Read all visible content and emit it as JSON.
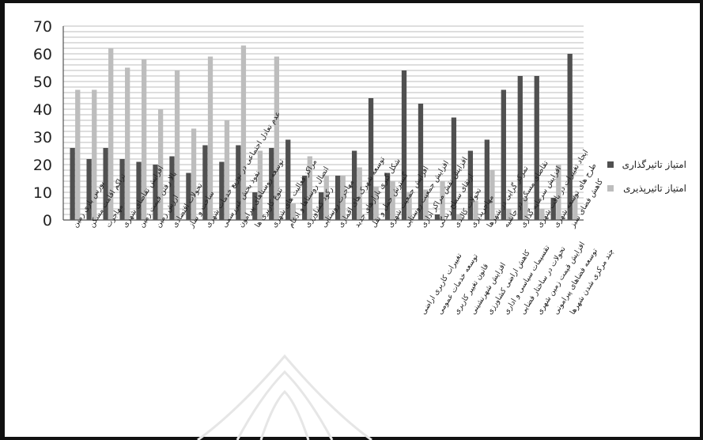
{
  "chart_data": {
    "type": "bar",
    "title": "",
    "xlabel": "",
    "ylabel": "",
    "ylim": [
      0,
      70
    ],
    "yticks": [
      0,
      10,
      20,
      30,
      40,
      50,
      60,
      70
    ],
    "grid": true,
    "legend_position": "right",
    "categories": [
      "بورس بازی زمین",
      "تراکم اقامت مسکن",
      "مهاجرت",
      "افزایش تقاضای شهری",
      "بالا رفتن قیمت زمین",
      "ارزش زمین",
      "تحولات اقتصادی",
      "ساخت و ساز",
      "عدم تعادل اجتماعی در توزیع خدمات شهری",
      "نفوذ بخش غیررسمی",
      "توسعه روستاهای پیرامون",
      "تنوع کاربری ها",
      "مراکز فعالیت های شهری",
      "اتصال روستاها و ادغام",
      "رکود کشاورزی",
      "مهاجرت روستایی",
      "توسعه شهرک های اقماری",
      "شکل گیری بازارهای جدید",
      "گسترش حمل و نقل",
      "افزایش جمعیت شهری",
      "افزایش جمعیت روستایی",
      "افزایش نقش مراکز اداری",
      "ارتقای سطح زندگی",
      "تحولات کالبدی",
      "مهاجرپذیری",
      "تمرکز گرایی در شهرها",
      "تقاضای مسکن در حاشیه",
      "افزایش سرمایه گذاری",
      "ایجاد تغییرات در بافت شهری",
      "طرح های توسعه شهری",
      "کاهش فضای سبز",
      "تغییرات کاربری اراضی",
      "توسعه خدمات عمومی",
      "قانون تغییر کاربری",
      "افزایش شهرنشینی",
      "کاهش اراضی کشاورزی",
      "تقسیمات سیاسی و اداری",
      "تحولات در ساختار فضایی",
      "افزایش قیمت زمین شهری",
      "توسعه فضاهای پیرامونی",
      "چند مرکزی شدن شهرها"
    ],
    "series": [
      {
        "name": "امتیاز تاثیرگذاری",
        "color": "#505050",
        "values": [
          26,
          22,
          26,
          22,
          21,
          20,
          23,
          17,
          27,
          21,
          27,
          10,
          26,
          29,
          16,
          10,
          16,
          25,
          44,
          17,
          54,
          42,
          2,
          37,
          25,
          29,
          47,
          52,
          52,
          8,
          60,
          0,
          0,
          0,
          0,
          0,
          0,
          0,
          0,
          0,
          0
        ]
      },
      {
        "name": "امتیاز تاثیرپذیری",
        "color": "#bdbdbd",
        "values": [
          47,
          47,
          62,
          55,
          58,
          40,
          54,
          33,
          59,
          36,
          63,
          25,
          59,
          6,
          23,
          16,
          16,
          19,
          12,
          14,
          10,
          11,
          14,
          2,
          7,
          18,
          4,
          8,
          4,
          20,
          9,
          0,
          0,
          0,
          0,
          0,
          0,
          0,
          0,
          0,
          0
        ]
      }
    ]
  }
}
